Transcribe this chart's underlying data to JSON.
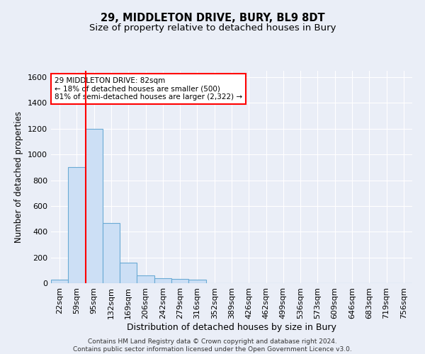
{
  "title1": "29, MIDDLETON DRIVE, BURY, BL9 8DT",
  "title2": "Size of property relative to detached houses in Bury",
  "xlabel": "Distribution of detached houses by size in Bury",
  "ylabel": "Number of detached properties",
  "categories": [
    "22sqm",
    "59sqm",
    "95sqm",
    "132sqm",
    "169sqm",
    "206sqm",
    "242sqm",
    "279sqm",
    "316sqm",
    "352sqm",
    "389sqm",
    "426sqm",
    "462sqm",
    "499sqm",
    "536sqm",
    "573sqm",
    "609sqm",
    "646sqm",
    "683sqm",
    "719sqm",
    "756sqm"
  ],
  "values": [
    30,
    900,
    1200,
    470,
    160,
    60,
    40,
    35,
    30,
    0,
    0,
    0,
    0,
    0,
    0,
    0,
    0,
    0,
    0,
    0,
    0
  ],
  "bar_color": "#ccdff5",
  "bar_edge_color": "#6aaad4",
  "annotation_text": "29 MIDDLETON DRIVE: 82sqm\n← 18% of detached houses are smaller (500)\n81% of semi-detached houses are larger (2,322) →",
  "annotation_box_color": "white",
  "annotation_box_edge_color": "red",
  "vline_color": "red",
  "vline_x_index": 1.5,
  "ylim": [
    0,
    1650
  ],
  "yticks": [
    0,
    200,
    400,
    600,
    800,
    1000,
    1200,
    1400,
    1600
  ],
  "footer1": "Contains HM Land Registry data © Crown copyright and database right 2024.",
  "footer2": "Contains public sector information licensed under the Open Government Licence v3.0.",
  "bg_color": "#eaeef7",
  "plot_bg_color": "#eaeef7",
  "grid_color": "white",
  "title1_fontsize": 10.5,
  "title2_fontsize": 9.5,
  "xlabel_fontsize": 9,
  "ylabel_fontsize": 8.5,
  "tick_fontsize": 8,
  "footer_fontsize": 6.5,
  "annot_fontsize": 7.5
}
